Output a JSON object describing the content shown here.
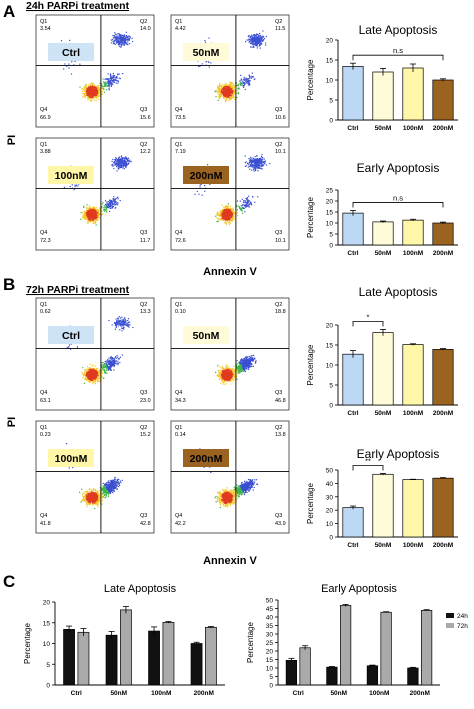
{
  "panels": {
    "A": {
      "letter": "A",
      "title": "24h PARPi treatment",
      "y_label": "PI",
      "x_label": "Annexin V",
      "flow_plots": [
        {
          "label": "Ctrl",
          "color": "#cfe3f7",
          "q1": "3.54",
          "q2": "14.0",
          "q3": "15.6",
          "q4": "66.9"
        },
        {
          "label": "50nM",
          "color": "#fffbd9",
          "q1": "4.42",
          "q2": "11.5",
          "q3": "10.6",
          "q4": "73.5"
        },
        {
          "label": "100nM",
          "color": "#fff6a8",
          "q1": "3.88",
          "q2": "12.2",
          "q3": "11.7",
          "q4": "72.3"
        },
        {
          "label": "200nM",
          "color": "#9b6320",
          "q1": "7.19",
          "q2": "10.1",
          "q3": "10.1",
          "q4": "72.6"
        }
      ]
    },
    "B": {
      "letter": "B",
      "title": "72h PARPi treatment",
      "y_label": "PI",
      "x_label": "Annexin V",
      "flow_plots": [
        {
          "label": "Ctrl",
          "color": "#cfe3f7",
          "q1": "0.62",
          "q2": "13.3",
          "q3": "23.0",
          "q4": "63.1"
        },
        {
          "label": "50nM",
          "color": "#fffbd9",
          "q1": "0.10",
          "q2": "18.8",
          "q3": "46.8",
          "q4": "34.3"
        },
        {
          "label": "100nM",
          "color": "#fff6a8",
          "q1": "0.23",
          "q2": "15.2",
          "q3": "42.8",
          "q4": "41.8"
        },
        {
          "label": "200nM",
          "color": "#9b6320",
          "q1": "0.14",
          "q2": "13.8",
          "q3": "43.9",
          "q4": "42.2"
        }
      ]
    },
    "C": {
      "letter": "C"
    }
  },
  "chart_data": [
    {
      "id": "a-late",
      "type": "bar",
      "title": "Late Apoptosis",
      "ylabel": "Percentage",
      "categories": [
        "Ctrl",
        "50nM",
        "100nM",
        "200nM"
      ],
      "values": [
        13.4,
        12.0,
        13.0,
        10.0
      ],
      "errors": [
        0.8,
        0.9,
        1.0,
        0.3
      ],
      "colors": [
        "#bcd8f5",
        "#fffbd9",
        "#fff6a8",
        "#9b6320"
      ],
      "ylim": [
        0,
        20
      ],
      "yticks": [
        0,
        5,
        10,
        15,
        20
      ],
      "annotation": {
        "text": "n.s",
        "from": 0,
        "to": 3
      }
    },
    {
      "id": "a-early",
      "type": "bar",
      "title": "Early Apoptosis",
      "ylabel": "Percentage",
      "categories": [
        "Ctrl",
        "50nM",
        "100nM",
        "200nM"
      ],
      "values": [
        14.5,
        10.5,
        11.3,
        10.0
      ],
      "errors": [
        1.2,
        0.4,
        0.4,
        0.4
      ],
      "colors": [
        "#bcd8f5",
        "#fffbd9",
        "#fff6a8",
        "#9b6320"
      ],
      "ylim": [
        0,
        25
      ],
      "yticks": [
        0,
        5,
        10,
        15,
        20,
        25
      ],
      "annotation": {
        "text": "n.s",
        "from": 0,
        "to": 3
      }
    },
    {
      "id": "b-late",
      "type": "bar",
      "title": "Late Apoptosis",
      "ylabel": "Percentage",
      "categories": [
        "Ctrl",
        "50nM",
        "100nM",
        "200nM"
      ],
      "values": [
        12.7,
        18.1,
        15.1,
        13.9
      ],
      "errors": [
        0.9,
        0.8,
        0.2,
        0.2
      ],
      "colors": [
        "#bcd8f5",
        "#fffbd9",
        "#fff6a8",
        "#9b6320"
      ],
      "ylim": [
        0,
        20
      ],
      "yticks": [
        0,
        5,
        10,
        15,
        20
      ],
      "annotation": {
        "text": "*",
        "from": 0,
        "to": 1
      }
    },
    {
      "id": "b-early",
      "type": "bar",
      "title": "Early Apoptosis",
      "ylabel": "Percentage",
      "categories": [
        "Ctrl",
        "50nM",
        "100nM",
        "200nM"
      ],
      "values": [
        21.9,
        46.8,
        42.8,
        43.9
      ],
      "errors": [
        1.2,
        0.6,
        0.3,
        0.4
      ],
      "colors": [
        "#bcd8f5",
        "#fffbd9",
        "#fff6a8",
        "#9b6320"
      ],
      "ylim": [
        0,
        50
      ],
      "yticks": [
        0,
        10,
        20,
        30,
        40,
        50
      ],
      "annotation": {
        "text": "**",
        "from": 0,
        "to": 1
      }
    },
    {
      "id": "c-late",
      "type": "bar",
      "title": "Late Apoptosis",
      "ylabel": "Percentage",
      "categories": [
        "Ctrl",
        "50nM",
        "100nM",
        "200nM"
      ],
      "series": [
        {
          "name": "24h",
          "color": "#111111",
          "values": [
            13.4,
            12.0,
            13.0,
            10.0
          ],
          "errors": [
            0.8,
            0.9,
            1.0,
            0.3
          ]
        },
        {
          "name": "72h",
          "color": "#aaaaaa",
          "values": [
            12.7,
            18.1,
            15.1,
            13.9
          ],
          "errors": [
            0.9,
            0.8,
            0.2,
            0.2
          ]
        }
      ],
      "ylim": [
        0,
        20
      ],
      "yticks": [
        0,
        5,
        10,
        15,
        20
      ]
    },
    {
      "id": "c-early",
      "type": "bar",
      "title": "Early Apoptosis",
      "ylabel": "Percentage",
      "categories": [
        "Ctrl",
        "50nM",
        "100nM",
        "200nM"
      ],
      "series": [
        {
          "name": "24h",
          "color": "#111111",
          "values": [
            14.5,
            10.5,
            11.3,
            10.0
          ],
          "errors": [
            1.2,
            0.4,
            0.4,
            0.4
          ]
        },
        {
          "name": "72h",
          "color": "#aaaaaa",
          "values": [
            21.9,
            46.8,
            42.8,
            43.9
          ],
          "errors": [
            1.2,
            0.6,
            0.3,
            0.4
          ]
        }
      ],
      "ylim": [
        0,
        50
      ],
      "yticks": [
        0,
        5,
        10,
        15,
        20,
        25,
        30,
        35,
        40,
        45,
        50
      ],
      "legend": "right"
    }
  ]
}
